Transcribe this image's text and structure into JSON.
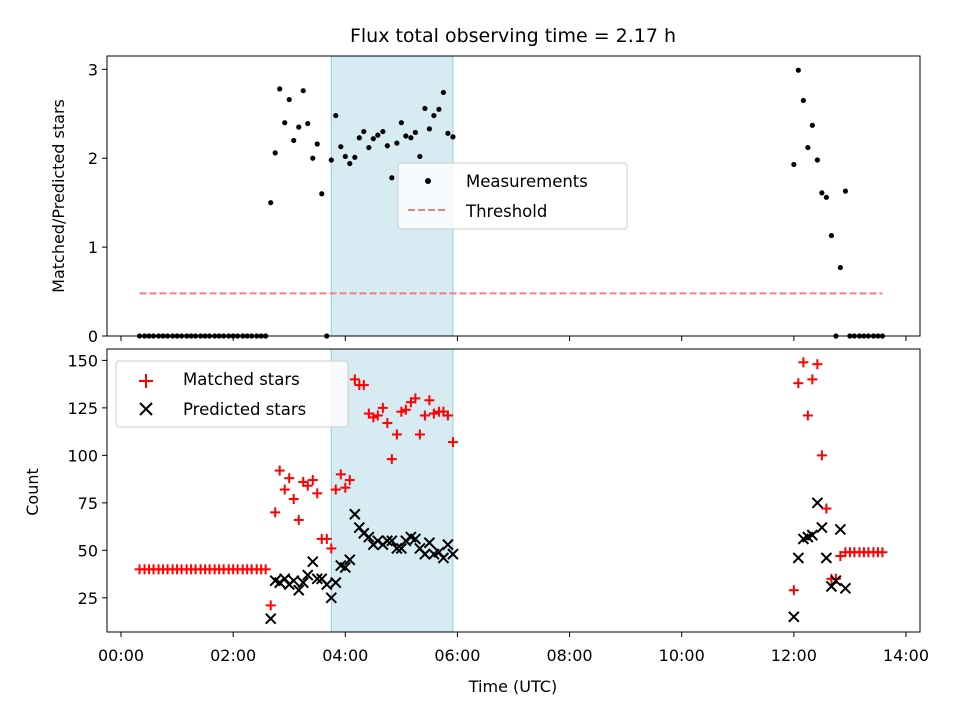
{
  "chart_data": [
    {
      "type": "scatter",
      "title": "Flux total observing time = 2.17 h",
      "xlabel": "",
      "ylabel": "Matched/Predicted stars",
      "ylim": [
        0,
        3.15
      ],
      "xlim_hours": [
        -0.25,
        14.25
      ],
      "yticks": [
        0,
        1,
        2,
        3
      ],
      "ytick_labels": [
        "0",
        "1",
        "2",
        "3"
      ],
      "grid": false,
      "legend": "center",
      "highlight_span_hours": [
        3.75,
        5.92
      ],
      "series": [
        {
          "name": "Measurements",
          "color": "#000000",
          "marker": "dot",
          "points": [
            [
              0.33,
              0
            ],
            [
              0.42,
              0
            ],
            [
              0.5,
              0
            ],
            [
              0.58,
              0
            ],
            [
              0.67,
              0
            ],
            [
              0.75,
              0
            ],
            [
              0.83,
              0
            ],
            [
              0.92,
              0
            ],
            [
              1.0,
              0
            ],
            [
              1.08,
              0
            ],
            [
              1.17,
              0
            ],
            [
              1.25,
              0
            ],
            [
              1.33,
              0
            ],
            [
              1.42,
              0
            ],
            [
              1.5,
              0
            ],
            [
              1.58,
              0
            ],
            [
              1.67,
              0
            ],
            [
              1.75,
              0
            ],
            [
              1.83,
              0
            ],
            [
              1.92,
              0
            ],
            [
              2.0,
              0
            ],
            [
              2.08,
              0
            ],
            [
              2.17,
              0
            ],
            [
              2.25,
              0
            ],
            [
              2.33,
              0
            ],
            [
              2.42,
              0
            ],
            [
              2.5,
              0
            ],
            [
              2.58,
              0
            ],
            [
              2.67,
              1.5
            ],
            [
              2.75,
              2.06
            ],
            [
              2.83,
              2.78
            ],
            [
              2.92,
              2.4
            ],
            [
              3.0,
              2.66
            ],
            [
              3.08,
              2.2
            ],
            [
              3.17,
              2.35
            ],
            [
              3.25,
              2.76
            ],
            [
              3.33,
              2.39
            ],
            [
              3.42,
              2.0
            ],
            [
              3.5,
              2.16
            ],
            [
              3.58,
              1.6
            ],
            [
              3.67,
              0
            ],
            [
              3.75,
              1.98
            ],
            [
              3.83,
              2.48
            ],
            [
              3.92,
              2.13
            ],
            [
              4.0,
              2.02
            ],
            [
              4.08,
              1.94
            ],
            [
              4.17,
              2.01
            ],
            [
              4.25,
              2.23
            ],
            [
              4.33,
              2.3
            ],
            [
              4.42,
              2.12
            ],
            [
              4.5,
              2.22
            ],
            [
              4.58,
              2.26
            ],
            [
              4.67,
              2.3
            ],
            [
              4.75,
              2.14
            ],
            [
              4.83,
              1.78
            ],
            [
              4.92,
              2.17
            ],
            [
              5.0,
              2.4
            ],
            [
              5.08,
              2.25
            ],
            [
              5.17,
              2.23
            ],
            [
              5.25,
              2.29
            ],
            [
              5.33,
              2.02
            ],
            [
              5.42,
              2.56
            ],
            [
              5.5,
              2.33
            ],
            [
              5.58,
              2.48
            ],
            [
              5.67,
              2.55
            ],
            [
              5.75,
              2.74
            ],
            [
              5.83,
              2.28
            ],
            [
              5.92,
              2.24
            ],
            [
              12.0,
              1.93
            ],
            [
              12.08,
              2.99
            ],
            [
              12.17,
              2.65
            ],
            [
              12.25,
              2.12
            ],
            [
              12.33,
              2.37
            ],
            [
              12.42,
              1.98
            ],
            [
              12.5,
              1.61
            ],
            [
              12.58,
              1.56
            ],
            [
              12.67,
              1.13
            ],
            [
              12.75,
              0
            ],
            [
              12.83,
              0.77
            ],
            [
              12.92,
              1.63
            ],
            [
              13.0,
              0
            ],
            [
              13.08,
              0
            ],
            [
              13.17,
              0
            ],
            [
              13.25,
              0
            ],
            [
              13.33,
              0
            ],
            [
              13.42,
              0
            ],
            [
              13.5,
              0
            ],
            [
              13.58,
              0
            ]
          ]
        },
        {
          "name": "Threshold",
          "color": "#f08080",
          "style": "dashed",
          "x_range_hours": [
            0.33,
            13.58
          ],
          "y": 0.48
        }
      ]
    },
    {
      "type": "scatter",
      "title": "",
      "xlabel": "Time (UTC)",
      "ylabel": "Count",
      "ylim": [
        7,
        156
      ],
      "xlim_hours": [
        -0.25,
        14.25
      ],
      "yticks": [
        25,
        50,
        75,
        100,
        125,
        150
      ],
      "ytick_labels": [
        "25",
        "50",
        "75",
        "100",
        "125",
        "150"
      ],
      "xticks_hours": [
        0,
        2,
        4,
        6,
        8,
        10,
        12,
        14
      ],
      "xtick_labels": [
        "00:00",
        "02:00",
        "04:00",
        "06:00",
        "08:00",
        "10:00",
        "12:00",
        "14:00"
      ],
      "grid": false,
      "legend": "upper left",
      "highlight_span_hours": [
        3.75,
        5.92
      ],
      "series": [
        {
          "name": "Matched stars",
          "color": "#ff0000",
          "marker": "plus",
          "points": [
            [
              0.33,
              40
            ],
            [
              0.42,
              40
            ],
            [
              0.5,
              40
            ],
            [
              0.58,
              40
            ],
            [
              0.67,
              40
            ],
            [
              0.75,
              40
            ],
            [
              0.83,
              40
            ],
            [
              0.92,
              40
            ],
            [
              1.0,
              40
            ],
            [
              1.08,
              40
            ],
            [
              1.17,
              40
            ],
            [
              1.25,
              40
            ],
            [
              1.33,
              40
            ],
            [
              1.42,
              40
            ],
            [
              1.5,
              40
            ],
            [
              1.58,
              40
            ],
            [
              1.67,
              40
            ],
            [
              1.75,
              40
            ],
            [
              1.83,
              40
            ],
            [
              1.92,
              40
            ],
            [
              2.0,
              40
            ],
            [
              2.08,
              40
            ],
            [
              2.17,
              40
            ],
            [
              2.25,
              40
            ],
            [
              2.33,
              40
            ],
            [
              2.42,
              40
            ],
            [
              2.5,
              40
            ],
            [
              2.58,
              40
            ],
            [
              2.67,
              21
            ],
            [
              2.75,
              70
            ],
            [
              2.83,
              92
            ],
            [
              2.92,
              82
            ],
            [
              3.0,
              88
            ],
            [
              3.08,
              77
            ],
            [
              3.17,
              66
            ],
            [
              3.25,
              86
            ],
            [
              3.33,
              84
            ],
            [
              3.42,
              87
            ],
            [
              3.5,
              80
            ],
            [
              3.58,
              56
            ],
            [
              3.67,
              56
            ],
            [
              3.75,
              51
            ],
            [
              3.83,
              82
            ],
            [
              3.92,
              90
            ],
            [
              4.0,
              83
            ],
            [
              4.08,
              87
            ],
            [
              4.17,
              140
            ],
            [
              4.25,
              137
            ],
            [
              4.33,
              137
            ],
            [
              4.42,
              122
            ],
            [
              4.5,
              120
            ],
            [
              4.58,
              121
            ],
            [
              4.67,
              125
            ],
            [
              4.75,
              117
            ],
            [
              4.83,
              98
            ],
            [
              4.92,
              111
            ],
            [
              5.0,
              123
            ],
            [
              5.08,
              124
            ],
            [
              5.17,
              128
            ],
            [
              5.25,
              130
            ],
            [
              5.33,
              111
            ],
            [
              5.42,
              121
            ],
            [
              5.5,
              129
            ],
            [
              5.58,
              122
            ],
            [
              5.67,
              123
            ],
            [
              5.75,
              123
            ],
            [
              5.83,
              121
            ],
            [
              5.92,
              107
            ],
            [
              12.0,
              29
            ],
            [
              12.08,
              138
            ],
            [
              12.17,
              149
            ],
            [
              12.25,
              121
            ],
            [
              12.33,
              140
            ],
            [
              12.42,
              148
            ],
            [
              12.5,
              100
            ],
            [
              12.58,
              72
            ],
            [
              12.67,
              35
            ],
            [
              12.75,
              35
            ],
            [
              12.83,
              47
            ],
            [
              12.92,
              49
            ],
            [
              13.0,
              49
            ],
            [
              13.08,
              49
            ],
            [
              13.17,
              49
            ],
            [
              13.25,
              49
            ],
            [
              13.33,
              49
            ],
            [
              13.42,
              49
            ],
            [
              13.5,
              49
            ],
            [
              13.58,
              49
            ]
          ]
        },
        {
          "name": "Predicted stars",
          "color": "#000000",
          "marker": "x",
          "points": [
            [
              2.67,
              14
            ],
            [
              2.75,
              34
            ],
            [
              2.83,
              33
            ],
            [
              2.92,
              35
            ],
            [
              3.0,
              32
            ],
            [
              3.08,
              34
            ],
            [
              3.17,
              29
            ],
            [
              3.25,
              33
            ],
            [
              3.33,
              37
            ],
            [
              3.42,
              44
            ],
            [
              3.5,
              35
            ],
            [
              3.58,
              35
            ],
            [
              3.67,
              32
            ],
            [
              3.75,
              25
            ],
            [
              3.83,
              33
            ],
            [
              3.92,
              42
            ],
            [
              4.0,
              41
            ],
            [
              4.08,
              45
            ],
            [
              4.17,
              69
            ],
            [
              4.25,
              62
            ],
            [
              4.33,
              59
            ],
            [
              4.42,
              57
            ],
            [
              4.5,
              53
            ],
            [
              4.58,
              55
            ],
            [
              4.67,
              53
            ],
            [
              4.75,
              55
            ],
            [
              4.83,
              55
            ],
            [
              4.92,
              51
            ],
            [
              5.0,
              51
            ],
            [
              5.08,
              55
            ],
            [
              5.17,
              57
            ],
            [
              5.25,
              56
            ],
            [
              5.33,
              51
            ],
            [
              5.42,
              48
            ],
            [
              5.5,
              54
            ],
            [
              5.58,
              48
            ],
            [
              5.67,
              49
            ],
            [
              5.75,
              46
            ],
            [
              5.83,
              53
            ],
            [
              5.92,
              48
            ],
            [
              12.0,
              15
            ],
            [
              12.08,
              46
            ],
            [
              12.17,
              56
            ],
            [
              12.25,
              57
            ],
            [
              12.33,
              58
            ],
            [
              12.42,
              75
            ],
            [
              12.5,
              62
            ],
            [
              12.58,
              46
            ],
            [
              12.67,
              31
            ],
            [
              12.75,
              34
            ],
            [
              12.83,
              61
            ],
            [
              12.92,
              30
            ]
          ]
        }
      ]
    }
  ]
}
